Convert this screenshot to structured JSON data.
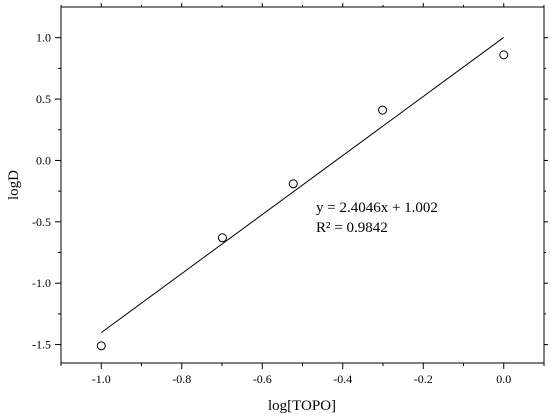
{
  "chart_data": {
    "type": "scatter",
    "xlabel": "log[TOPO]",
    "ylabel": "logD",
    "xlim": [
      -1.1,
      0.1
    ],
    "ylim": [
      -1.65,
      1.25
    ],
    "x_ticks": [
      "-1.0",
      "-0.8",
      "-0.6",
      "-0.4",
      "-0.2",
      "0.0"
    ],
    "x_tick_values": [
      -1.0,
      -0.8,
      -0.6,
      -0.4,
      -0.2,
      0.0
    ],
    "y_ticks": [
      "1.0",
      "0.5",
      "0.0",
      "-0.5",
      "-1.0",
      "-1.5"
    ],
    "y_tick_values": [
      1.0,
      0.5,
      0.0,
      -0.5,
      -1.0,
      -1.5
    ],
    "series": [
      {
        "points": [
          {
            "x": -1.0,
            "y": -1.51
          },
          {
            "x": -0.699,
            "y": -0.63
          },
          {
            "x": -0.523,
            "y": -0.19
          },
          {
            "x": -0.301,
            "y": 0.41
          },
          {
            "x": 0.0,
            "y": 0.86
          }
        ]
      }
    ],
    "fit": {
      "slope": 2.4046,
      "intercept": 1.002,
      "x_range": [
        -1.0,
        0.0
      ]
    },
    "annotations": [
      "y = 2.4046x + 1.002",
      "R² = 0.9842"
    ],
    "grid": false,
    "legend": "none"
  }
}
